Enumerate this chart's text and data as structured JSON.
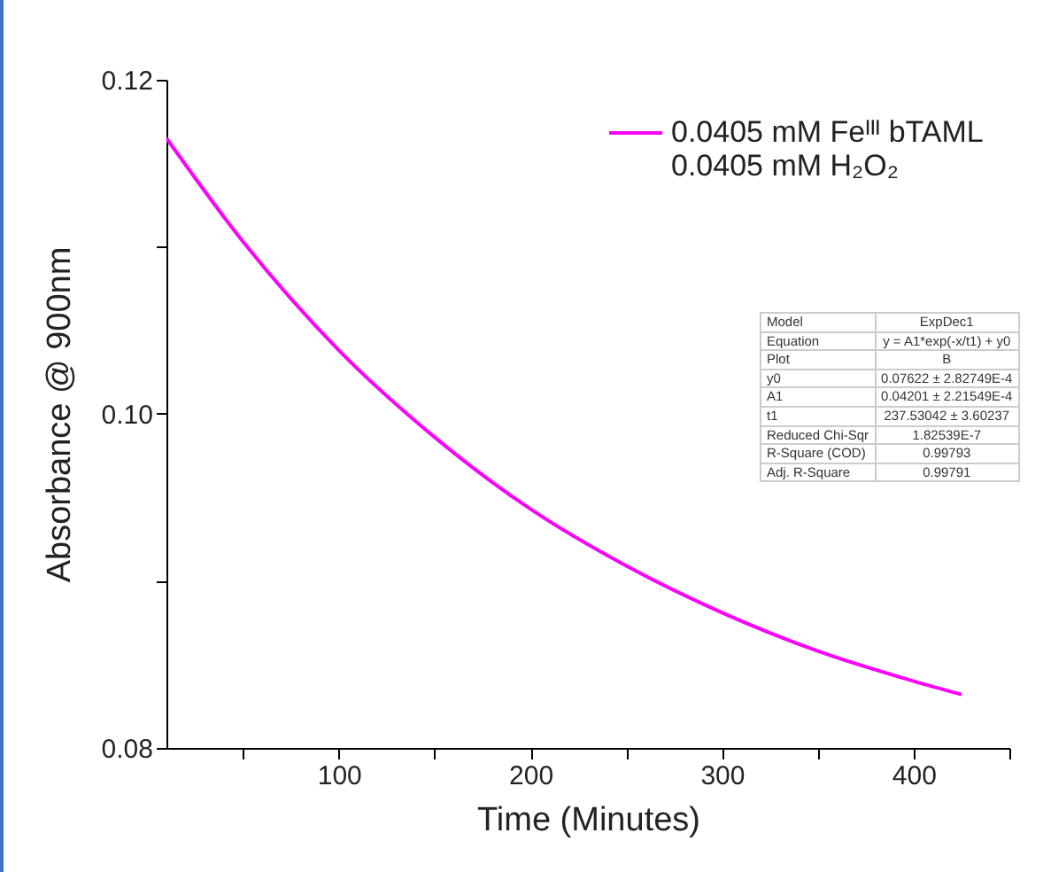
{
  "chart_data": {
    "type": "line",
    "xlabel": "Time (Minutes)",
    "ylabel": "Absorbance @ 900nm",
    "x": [
      10,
      50,
      100,
      150,
      200,
      250,
      300,
      350,
      400,
      425
    ],
    "series": [
      {
        "name": "0.0405 mM Feᴵᴵᴵ bTAML\n0.0405 mM H₂O₂",
        "color": "#ff00ff",
        "values": [
          0.1165,
          0.1103,
          0.1038,
          0.0986,
          0.0943,
          0.0909,
          0.0881,
          0.0858,
          0.084,
          0.0832
        ]
      }
    ],
    "xlim": [
      10,
      450
    ],
    "xticks": [
      {
        "value": 50,
        "label": null
      },
      100,
      {
        "value": 150,
        "label": null
      },
      200,
      {
        "value": 250,
        "label": null
      },
      300,
      {
        "value": 350,
        "label": null
      },
      400,
      {
        "value": 450,
        "label": null
      }
    ],
    "ylim": [
      0.08,
      0.12
    ],
    "yticks": [
      {
        "value": 0.08,
        "label": "0.08"
      },
      {
        "value": 0.09,
        "label": null
      },
      {
        "value": 0.1,
        "label": "0.10"
      },
      {
        "value": 0.11,
        "label": null
      },
      {
        "value": 0.12,
        "label": "0.12"
      }
    ],
    "grid": false,
    "legend": "top right",
    "annotations": [
      "Model",
      "ExpDec1",
      "Equation",
      "y = A1*exp(-x/t1) + y0",
      "Plot",
      "B",
      "y0",
      "0.07622 ± 2.82749E-4",
      "A1",
      "0.04201 ± 2.21549E-4",
      "t1",
      "237.53042 ± 3.60237",
      "Reduced Chi-Sqr",
      "1.82539E-7",
      "R-Square (COD)",
      "0.99793",
      "Adj. R-Square",
      "0.99791"
    ]
  }
}
